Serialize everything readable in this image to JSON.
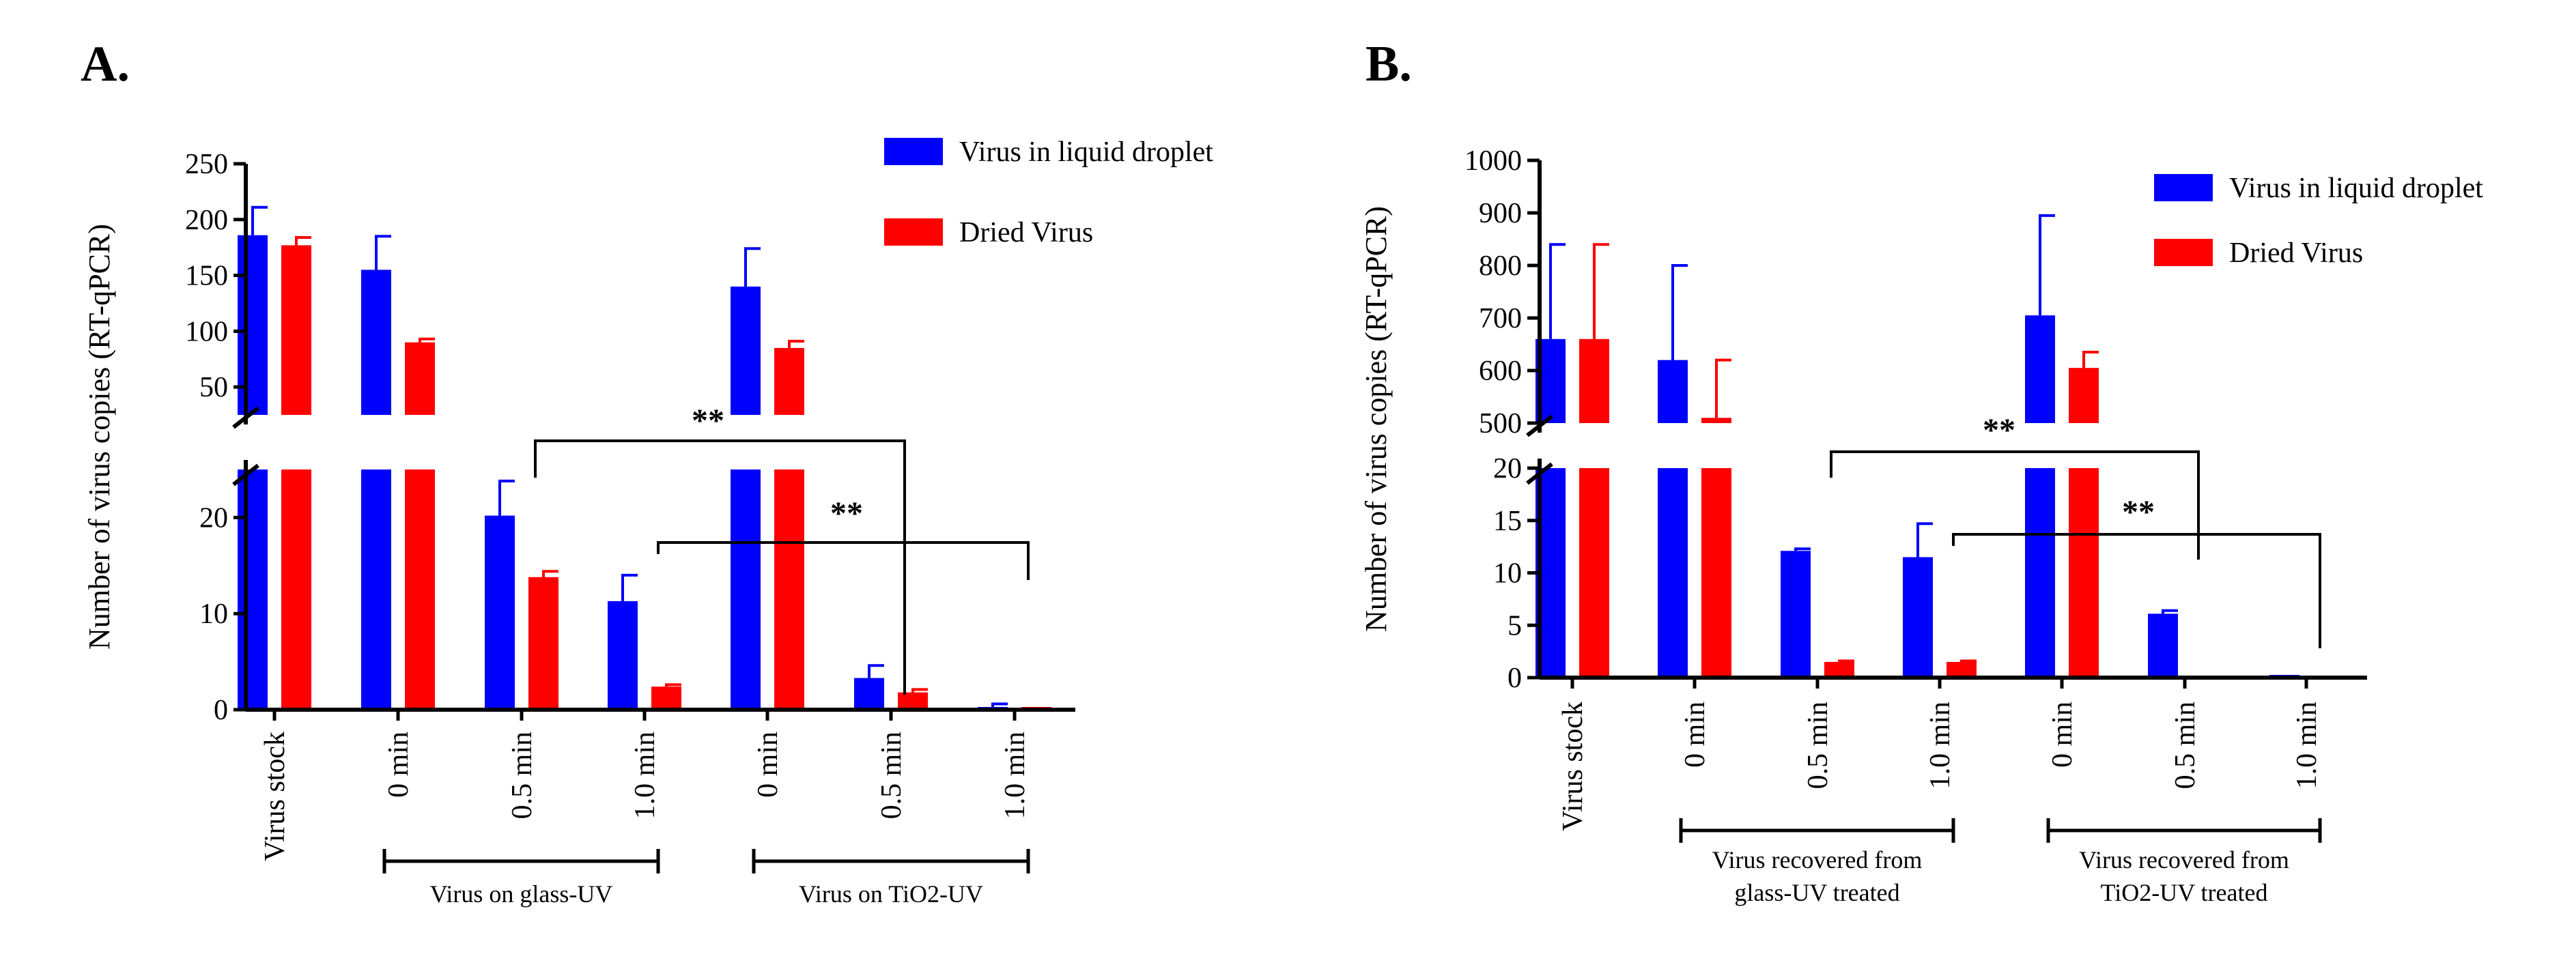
{
  "colors": {
    "series1": "#0000ff",
    "series2": "#ff0000",
    "axis": "#000000"
  },
  "chart_data": [
    {
      "panel": "A.",
      "type": "bar",
      "ylabel": "Number of virus copies (RT-qPCR)",
      "categories": [
        "Virus stock",
        "0 min",
        "0.5 min",
        "1.0 min",
        "0 min",
        "0.5 min",
        "1.0 min"
      ],
      "series": [
        {
          "name": "Virus in liquid droplet",
          "values": [
            186,
            155,
            20.2,
            11.3,
            140,
            3.3,
            0.1
          ],
          "errors": [
            25,
            30,
            3.6,
            2.7,
            34,
            1.3,
            0.5
          ]
        },
        {
          "name": "Dried Virus",
          "values": [
            177,
            90,
            13.8,
            2.4,
            85,
            1.8,
            0.05
          ],
          "errors": [
            7,
            3,
            0.6,
            0.2,
            6,
            0.3,
            0.05
          ]
        }
      ],
      "y_break": {
        "lower": [
          0,
          25
        ],
        "upper": [
          25,
          250
        ]
      },
      "y_ticks_lower": [
        "0",
        "10",
        "20"
      ],
      "y_ticks_upper": [
        "50",
        "100",
        "150",
        "200",
        "250"
      ],
      "groups": [
        {
          "label": "Virus on glass-UV",
          "from": 1,
          "to": 3
        },
        {
          "label": "Virus on TiO2-UV",
          "from": 4,
          "to": 6
        }
      ],
      "annotations": [
        {
          "text": "**",
          "from": 2,
          "to": 5
        },
        {
          "text": "**",
          "from": 3,
          "to": 6
        }
      ]
    },
    {
      "panel": "B.",
      "type": "bar",
      "ylabel": "Number of virus copies (RT-qPCR)",
      "categories": [
        "Virus stock",
        "0 min",
        "0.5 min",
        "1.0 min",
        "0 min",
        "0.5 min",
        "1.0 min"
      ],
      "series": [
        {
          "name": "Virus in liquid droplet",
          "values": [
            660,
            620,
            12.1,
            11.5,
            705,
            6.1,
            0.1
          ],
          "errors": [
            180,
            180,
            0.2,
            3.2,
            190,
            0.3,
            0
          ]
        },
        {
          "name": "Dried Virus",
          "values": [
            660,
            510,
            1.5,
            1.5,
            605,
            0,
            0
          ],
          "errors": [
            180,
            110,
            0.1,
            0.1,
            30,
            0,
            0
          ]
        }
      ],
      "y_break": {
        "lower": [
          0,
          20
        ],
        "upper": [
          500,
          1000
        ]
      },
      "y_ticks_lower": [
        "0",
        "5",
        "10",
        "15",
        "20"
      ],
      "y_ticks_upper": [
        "500",
        "600",
        "700",
        "800",
        "900",
        "1000"
      ],
      "groups": [
        {
          "label": "Virus recovered from",
          "label2": "glass-UV treated",
          "from": 1,
          "to": 3
        },
        {
          "label": "Virus recovered  from",
          "label2": "TiO2-UV treated",
          "from": 4,
          "to": 6
        }
      ],
      "annotations": [
        {
          "text": "**",
          "from": 2,
          "to": 5
        },
        {
          "text": "**",
          "from": 3,
          "to": 6
        }
      ]
    }
  ]
}
